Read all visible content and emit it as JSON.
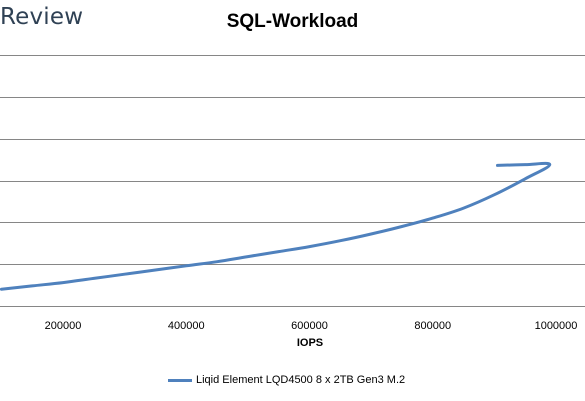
{
  "logo": {
    "text": "Review"
  },
  "chart_data": {
    "type": "line",
    "title": "SQL-Workload",
    "xlabel": "IOPS",
    "ylabel": "",
    "xlim": [
      100000,
      1050000
    ],
    "x_ticks": [
      200000,
      400000,
      600000,
      800000,
      1000000
    ],
    "x_tick_labels": [
      "200000",
      "400000",
      "600000",
      "800000",
      "1000000"
    ],
    "grid": true,
    "legend_position": "bottom",
    "series": [
      {
        "name": "Liqid Element LQD4500 8 x 2TB Gen3 M.2",
        "color": "#4f81bd",
        "points": [
          [
            100000,
            0.2
          ],
          [
            150000,
            0.24
          ],
          [
            200000,
            0.28
          ],
          [
            250000,
            0.33
          ],
          [
            300000,
            0.38
          ],
          [
            350000,
            0.43
          ],
          [
            400000,
            0.48
          ],
          [
            450000,
            0.53
          ],
          [
            500000,
            0.59
          ],
          [
            550000,
            0.65
          ],
          [
            600000,
            0.71
          ],
          [
            650000,
            0.78
          ],
          [
            700000,
            0.86
          ],
          [
            750000,
            0.95
          ],
          [
            800000,
            1.05
          ],
          [
            850000,
            1.17
          ],
          [
            900000,
            1.33
          ],
          [
            950000,
            1.52
          ],
          [
            990000,
            1.69
          ],
          [
            950000,
            1.69
          ],
          [
            905000,
            1.68
          ]
        ]
      }
    ]
  }
}
